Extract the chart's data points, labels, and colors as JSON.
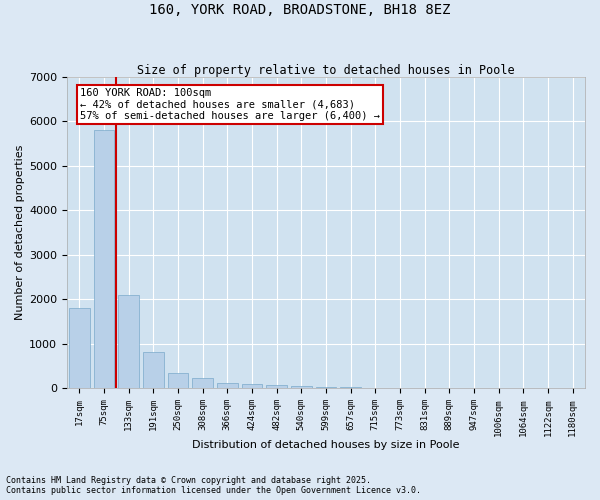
{
  "title1": "160, YORK ROAD, BROADSTONE, BH18 8EZ",
  "title2": "Size of property relative to detached houses in Poole",
  "xlabel": "Distribution of detached houses by size in Poole",
  "ylabel": "Number of detached properties",
  "footer1": "Contains HM Land Registry data © Crown copyright and database right 2025.",
  "footer2": "Contains public sector information licensed under the Open Government Licence v3.0.",
  "annotation_title": "160 YORK ROAD: 100sqm",
  "annotation_line1": "← 42% of detached houses are smaller (4,683)",
  "annotation_line2": "57% of semi-detached houses are larger (6,400) →",
  "bar_color": "#b8d0e8",
  "bar_edge_color": "#7aaacb",
  "vline_color": "#cc0000",
  "annotation_box_edge_color": "#cc0000",
  "background_color": "#dce8f4",
  "plot_bg_color": "#d0e2f0",
  "grid_color": "#ffffff",
  "categories": [
    "17sqm",
    "75sqm",
    "133sqm",
    "191sqm",
    "250sqm",
    "308sqm",
    "366sqm",
    "424sqm",
    "482sqm",
    "540sqm",
    "599sqm",
    "657sqm",
    "715sqm",
    "773sqm",
    "831sqm",
    "889sqm",
    "947sqm",
    "1006sqm",
    "1064sqm",
    "1122sqm",
    "1180sqm"
  ],
  "values": [
    1800,
    5800,
    2100,
    820,
    350,
    230,
    130,
    100,
    70,
    50,
    40,
    25,
    15,
    10,
    8,
    5,
    4,
    3,
    2,
    1,
    1
  ],
  "ylim": [
    0,
    7000
  ],
  "vline_x_index": 1,
  "figsize": [
    6.0,
    5.0
  ],
  "dpi": 100
}
